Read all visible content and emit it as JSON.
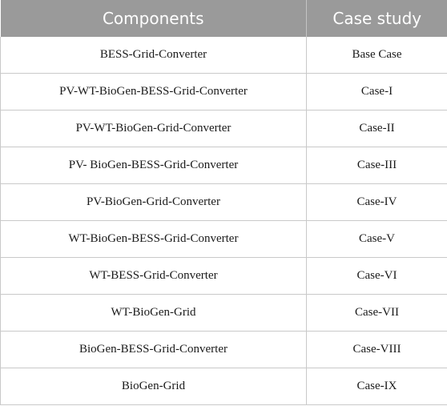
{
  "table": {
    "headers": [
      "Components",
      "Case study"
    ],
    "rows": [
      [
        "BESS-Grid-Converter",
        "Base Case"
      ],
      [
        "PV-WT-BioGen-BESS-Grid-Converter",
        "Case-I"
      ],
      [
        "PV-WT-BioGen-Grid-Converter",
        "Case-II"
      ],
      [
        "PV- BioGen-BESS-Grid-Converter",
        "Case-III"
      ],
      [
        "PV-BioGen-Grid-Converter",
        "Case-IV"
      ],
      [
        "WT-BioGen-BESS-Grid-Converter",
        "Case-V"
      ],
      [
        "WT-BESS-Grid-Converter",
        "Case-VI"
      ],
      [
        "WT-BioGen-Grid",
        "Case-VII"
      ],
      [
        "BioGen-BESS-Grid-Converter",
        "Case-VIII"
      ],
      [
        "BioGen-Grid",
        "Case-IX"
      ]
    ]
  }
}
